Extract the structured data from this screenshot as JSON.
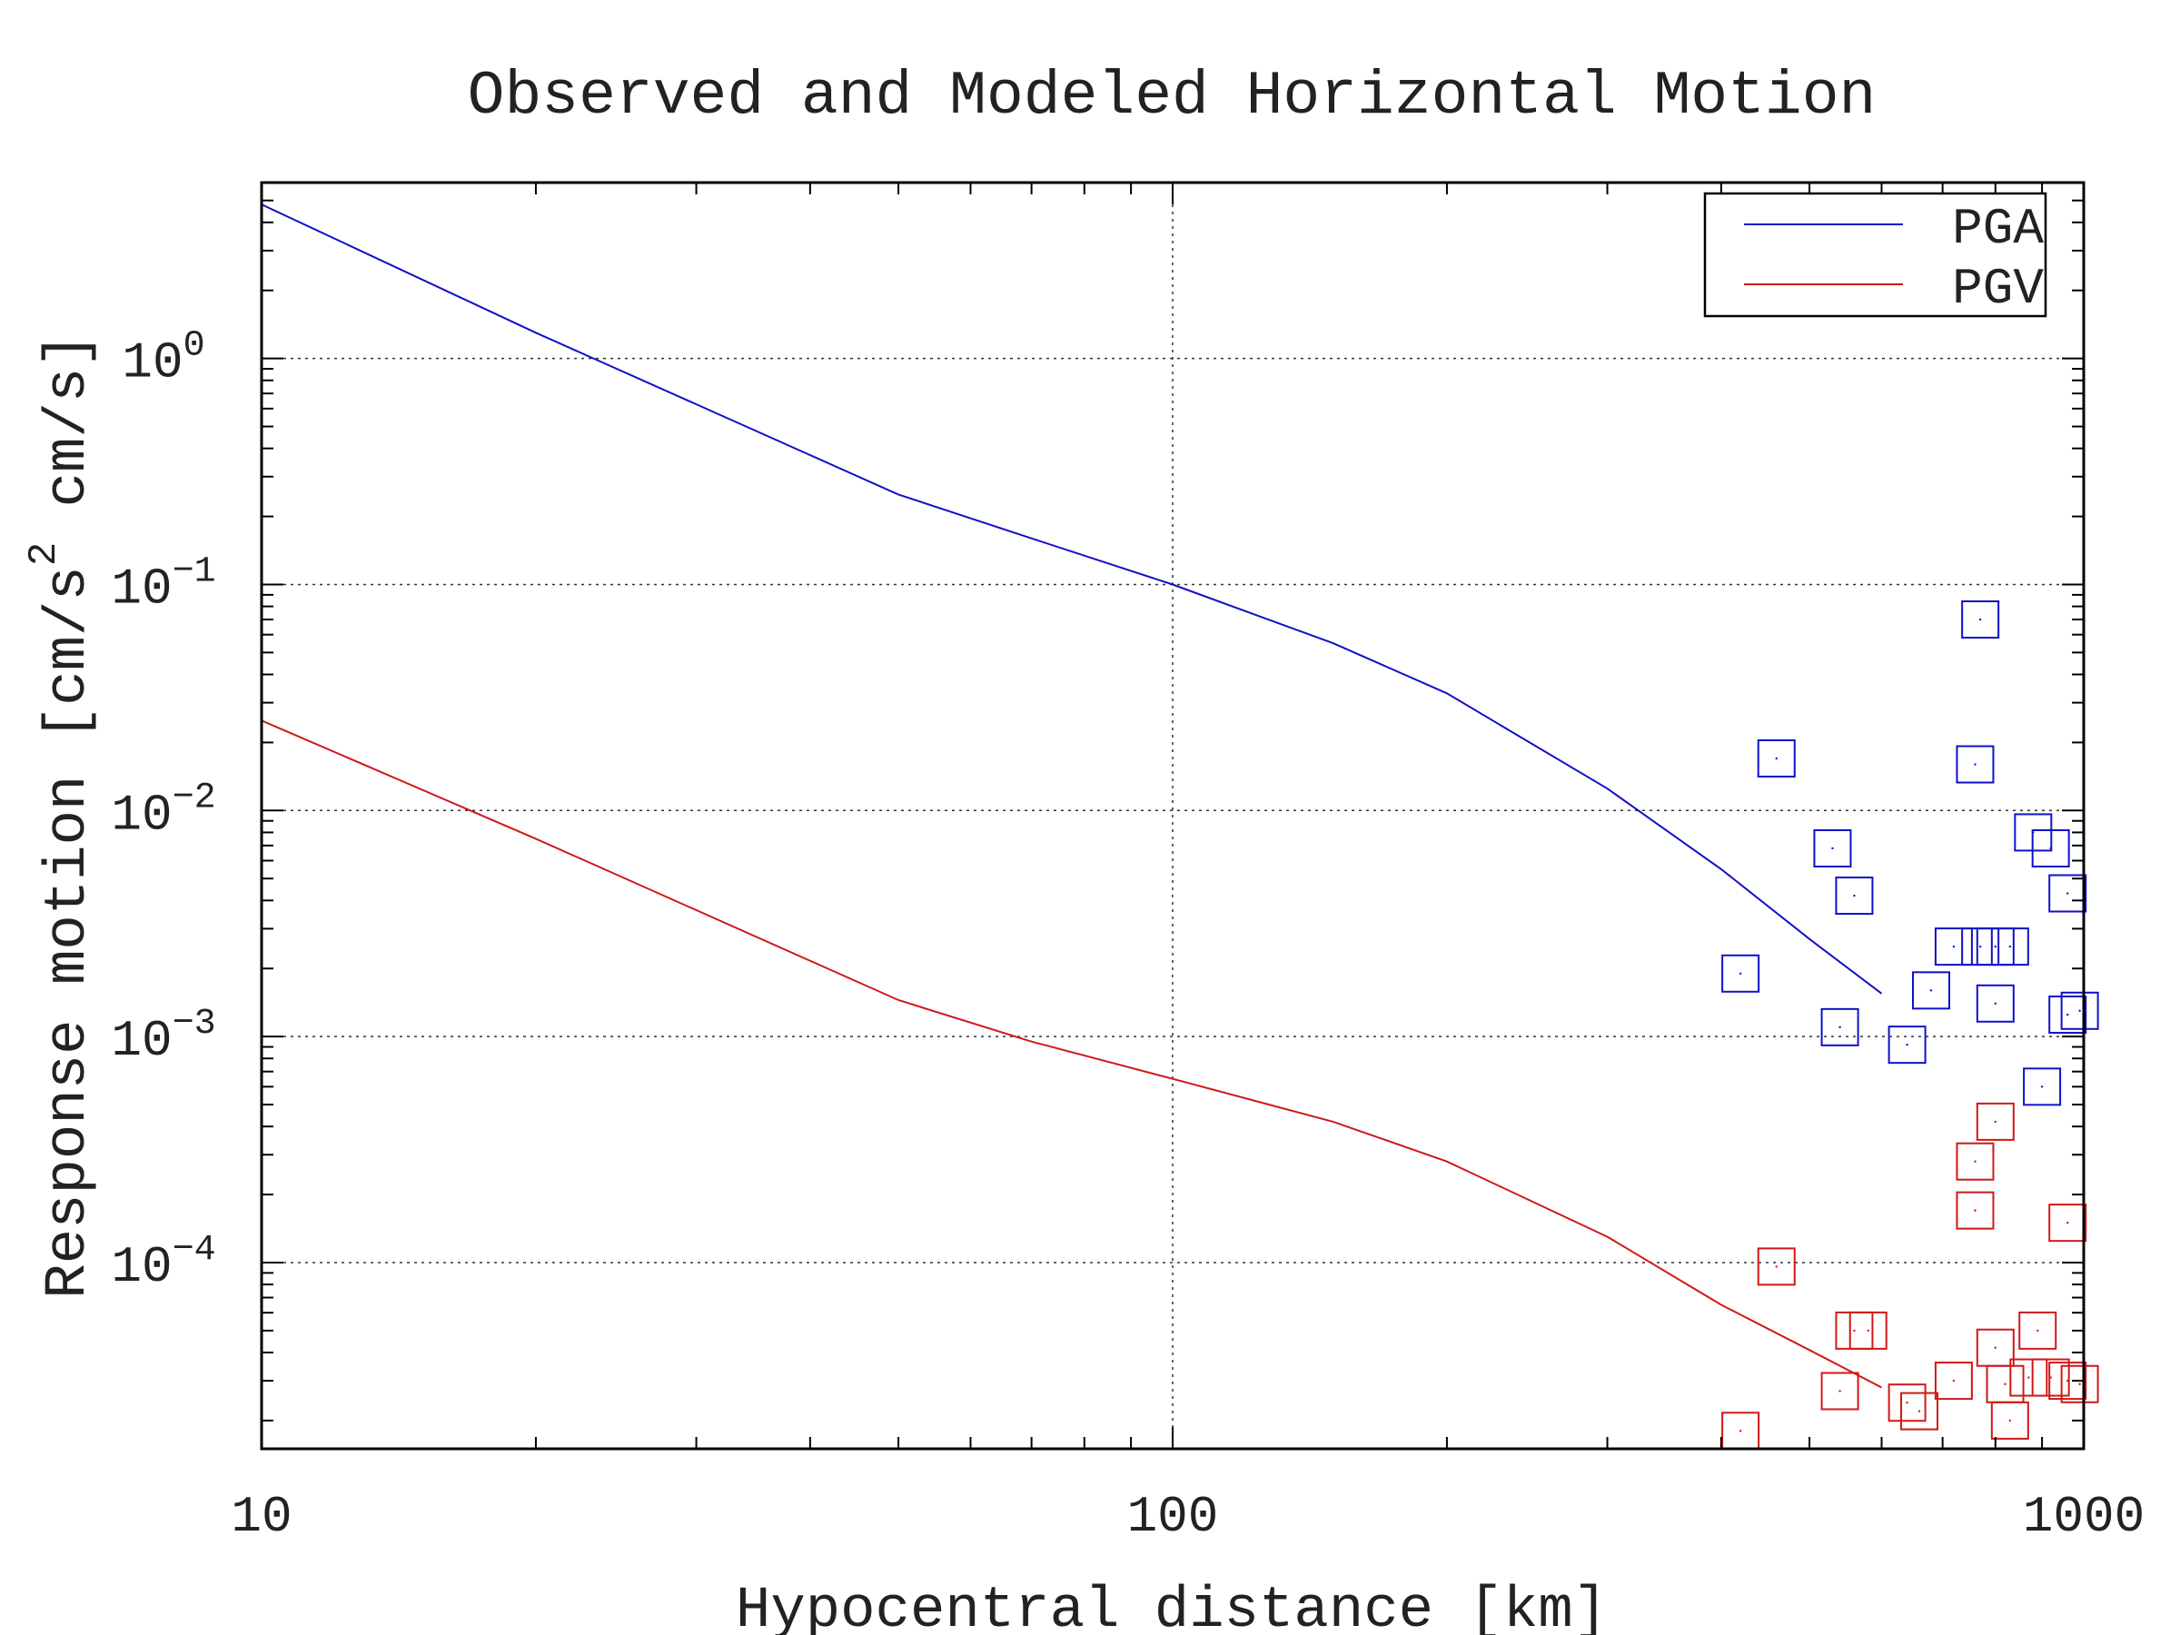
{
  "chart_data": {
    "type": "line",
    "title": "Observed and Modeled Horizontal Motion",
    "xlabel": "Hypocentral distance [km]",
    "ylabel": {
      "prefix": "Response motion  [cm/s",
      "sup": "2",
      "suffix": "  cm/s]"
    },
    "x_scale": "log",
    "y_scale": "log",
    "xlim": [
      10,
      1000
    ],
    "ylim": [
      1.5e-05,
      6
    ],
    "grid": true,
    "legend_position": "top-right",
    "x_ticks": [
      {
        "value": 10,
        "label": "10"
      },
      {
        "value": 100,
        "label": "100"
      },
      {
        "value": 1000,
        "label": "1000"
      }
    ],
    "y_ticks": [
      {
        "value": 1,
        "base": "10",
        "exp": "0"
      },
      {
        "value": 0.1,
        "base": "10",
        "exp": "−1"
      },
      {
        "value": 0.01,
        "base": "10",
        "exp": "−2"
      },
      {
        "value": 0.001,
        "base": "10",
        "exp": "−3"
      },
      {
        "value": 0.0001,
        "base": "10",
        "exp": "−4"
      }
    ],
    "series": [
      {
        "name": "PGA",
        "color": "#1010c8",
        "line": {
          "x": [
            10,
            20,
            50,
            70,
            100,
            150,
            200,
            300,
            400,
            500,
            600
          ],
          "y": [
            4.8,
            1.3,
            0.25,
            0.16,
            0.1,
            0.055,
            0.033,
            0.0125,
            0.0055,
            0.0027,
            0.00155
          ]
        },
        "points": {
          "x": [
            420,
            460,
            540,
            560,
            530,
            640,
            680,
            720,
            770,
            800,
            830,
            800,
            760,
            770,
            880,
            920,
            960,
            990,
            900,
            960
          ],
          "y": [
            0.0019,
            0.017,
            0.0011,
            0.0042,
            0.0068,
            0.00092,
            0.0016,
            0.0025,
            0.0025,
            0.0025,
            0.0025,
            0.0014,
            0.016,
            0.07,
            0.008,
            0.0068,
            0.0043,
            0.0013,
            0.0006,
            0.00125
          ]
        }
      },
      {
        "name": "PGV",
        "color": "#d01818",
        "line": {
          "x": [
            10,
            20,
            50,
            70,
            100,
            150,
            200,
            300,
            400,
            500,
            600
          ],
          "y": [
            0.025,
            0.0075,
            0.00145,
            0.00095,
            0.00065,
            0.00042,
            0.00028,
            0.00013,
            6.5e-05,
            4.1e-05,
            2.8e-05
          ]
        },
        "points": {
          "x": [
            420,
            460,
            540,
            560,
            580,
            640,
            660,
            720,
            760,
            800,
            820,
            830,
            870,
            890,
            920,
            960,
            990,
            760,
            800,
            960
          ],
          "y": [
            1.8e-05,
            9.6e-05,
            2.7e-05,
            5e-05,
            5e-05,
            2.4e-05,
            2.2e-05,
            3e-05,
            0.00028,
            4.2e-05,
            2.9e-05,
            2e-05,
            3.1e-05,
            5e-05,
            3.1e-05,
            3e-05,
            2.9e-05,
            0.00017,
            0.00042,
            0.00015
          ]
        }
      }
    ]
  }
}
